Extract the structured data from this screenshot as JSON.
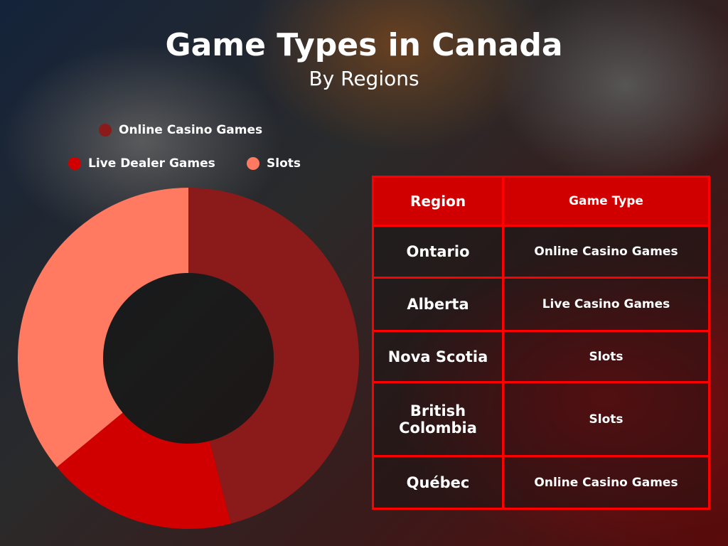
{
  "header": {
    "title": "Game Types in Canada",
    "subtitle": "By Regions"
  },
  "chart_data": {
    "type": "pie",
    "title": "Game Types in Canada",
    "subtitle": "By Regions",
    "donut": true,
    "legend_position": "top",
    "categories": [
      "Online Casino Games",
      "Live Dealer Games",
      "Slots"
    ],
    "values": [
      46,
      18,
      36
    ],
    "colors": [
      "#8b1a1a",
      "#d10000",
      "#ff7a61"
    ]
  },
  "table": {
    "headers": [
      "Region",
      "Game Type"
    ],
    "rows": [
      [
        "Ontario",
        "Online Casino Games"
      ],
      [
        "Alberta",
        "Live Casino Games"
      ],
      [
        "Nova Scotia",
        "Slots"
      ],
      [
        "British Colombia",
        "Slots"
      ],
      [
        "Québec",
        "Online Casino Games"
      ]
    ]
  }
}
